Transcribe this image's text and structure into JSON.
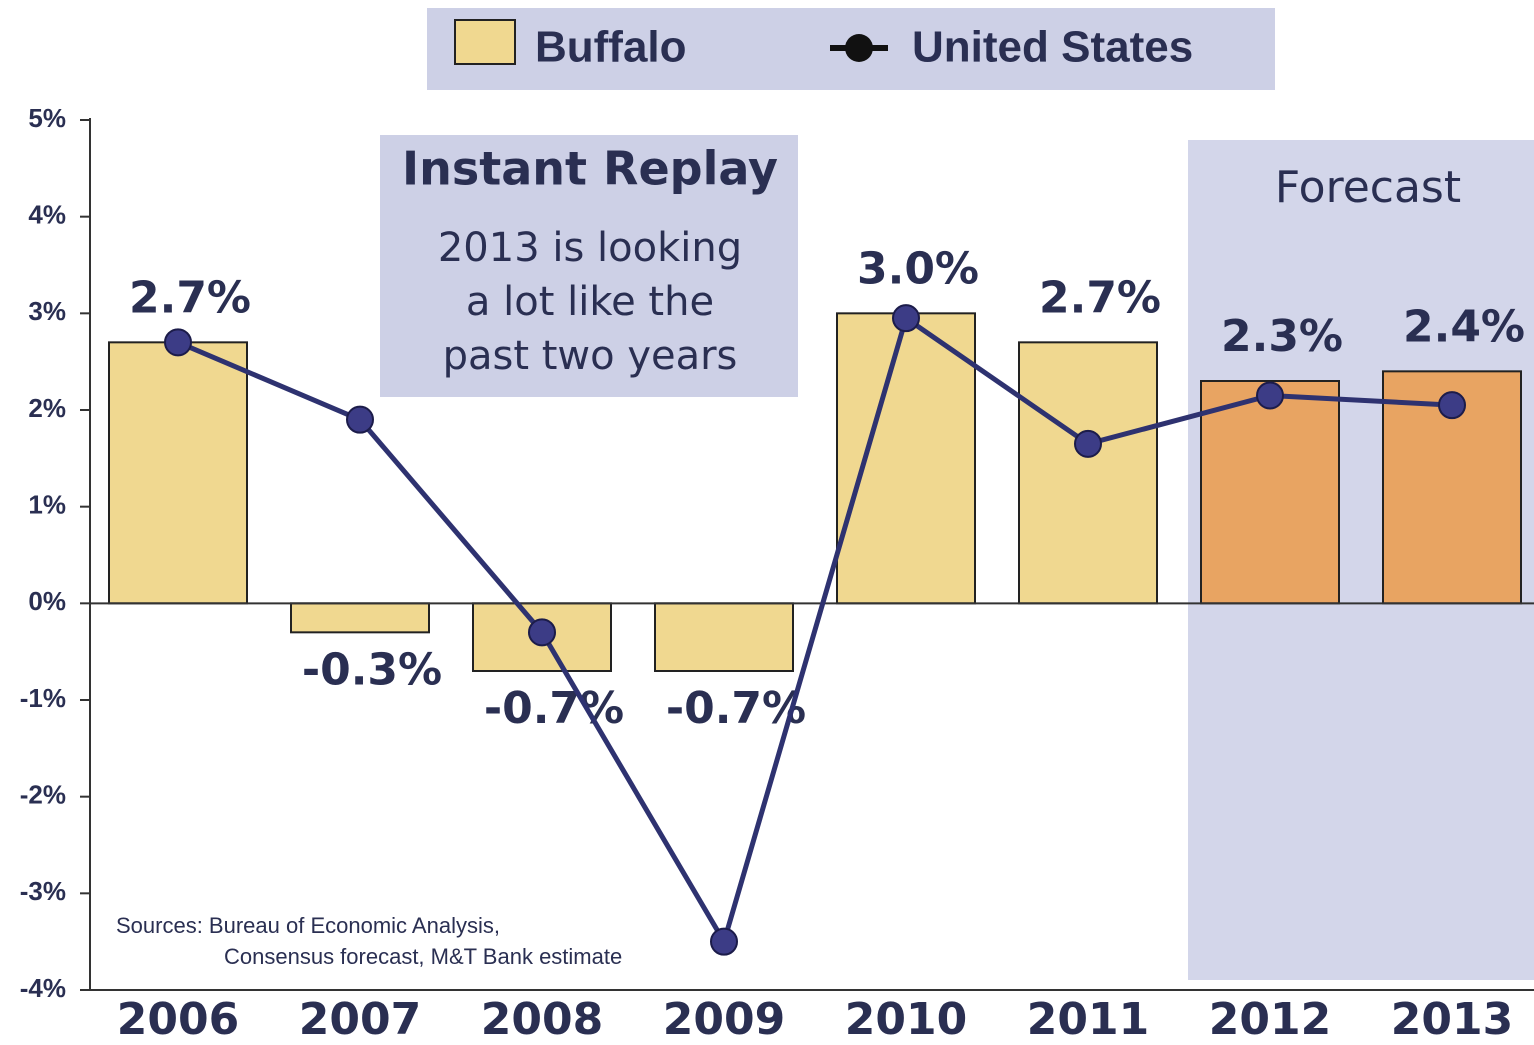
{
  "chart_data": {
    "type": "bar",
    "legend_position": "top",
    "categories": [
      "2006",
      "2007",
      "2008",
      "2009",
      "2010",
      "2011",
      "2012",
      "2013"
    ],
    "series": [
      {
        "name": "Buffalo",
        "type": "bar",
        "color": "#f0d890",
        "colors": [
          "#f0d890",
          "#f0d890",
          "#f0d890",
          "#f0d890",
          "#f0d890",
          "#f0d890",
          "#e8a462",
          "#e8a462"
        ],
        "values": [
          2.7,
          -0.3,
          -0.7,
          -0.7,
          3.0,
          2.7,
          2.3,
          2.4
        ],
        "value_labels": [
          "2.7%",
          "-0.3%",
          "-0.7%",
          "-0.7%",
          "3.0%",
          "2.7%",
          "2.3%",
          "2.4%"
        ]
      },
      {
        "name": "United States",
        "type": "line",
        "color": "#2e3270",
        "values": [
          2.7,
          1.9,
          -0.3,
          -3.5,
          2.95,
          1.65,
          2.15,
          2.05
        ]
      }
    ],
    "ylim": [
      -4,
      5
    ],
    "yticks": [
      {
        "value": -4,
        "label": "-4%"
      },
      {
        "value": -3,
        "label": "-3%"
      },
      {
        "value": -2,
        "label": "-2%"
      },
      {
        "value": -1,
        "label": "-1%"
      },
      {
        "value": 0,
        "label": "0%"
      },
      {
        "value": 1,
        "label": "1%"
      },
      {
        "value": 2,
        "label": "2%"
      },
      {
        "value": 3,
        "label": "3%"
      },
      {
        "value": 4,
        "label": "4%"
      },
      {
        "value": 5,
        "label": "5%"
      }
    ],
    "annotations": {
      "box_title": "Instant Replay",
      "box_lines": [
        "2013 is looking",
        "a lot like the",
        "past two years"
      ],
      "forecast": "Forecast",
      "sources": [
        "Sources:  Bureau of Economic Analysis,",
        "Consensus forecast, M&T Bank estimate"
      ]
    }
  }
}
